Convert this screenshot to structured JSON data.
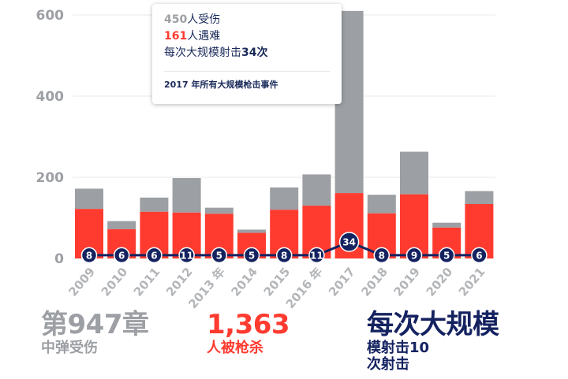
{
  "chart_data": {
    "type": "bar",
    "stacked": true,
    "categories": [
      "2009",
      "2010",
      "2011",
      "2012",
      "2013 年",
      "2014",
      "2015",
      "2016 年",
      "2017",
      "2018",
      "2019",
      "2020",
      "2021"
    ],
    "series": [
      {
        "name": "遇难",
        "color": "#ff3b30",
        "values": [
          122,
          72,
          115,
          113,
          110,
          63,
          120,
          130,
          161,
          111,
          158,
          76,
          134
        ]
      },
      {
        "name": "受伤",
        "color": "#9c9fa3",
        "values": [
          50,
          20,
          35,
          85,
          15,
          8,
          55,
          77,
          450,
          46,
          105,
          12,
          32
        ]
      }
    ],
    "line_series": {
      "name": "大规模射击次数",
      "color": "#142260",
      "values": [
        8,
        6,
        6,
        11,
        5,
        5,
        8,
        11,
        34,
        8,
        9,
        5,
        6
      ]
    },
    "line_baseline": 8,
    "yticks": [
      0,
      200,
      400,
      600
    ],
    "ylim": [
      0,
      610
    ],
    "grid": true,
    "highlighted_index": 8
  },
  "tooltip": {
    "injured_num": "450",
    "injured_text": "人受伤",
    "killed_num": "161",
    "killed_text": "人遇难",
    "shootings_text": "每次大规模射击",
    "shootings_num": "34次",
    "footer": "2017 年所有大规模枪击事件"
  },
  "stats": {
    "injured_big": "第947章",
    "injured_small": "中弹受伤",
    "killed_big": "1,363",
    "killed_small": "人被枪杀",
    "shootings_big": "每次大规模",
    "shootings_small_1": "模射击10",
    "shootings_small_2": "次射击"
  },
  "colors": {
    "gray": "#9c9fa3",
    "red": "#ff3b30",
    "navy": "#142260"
  }
}
